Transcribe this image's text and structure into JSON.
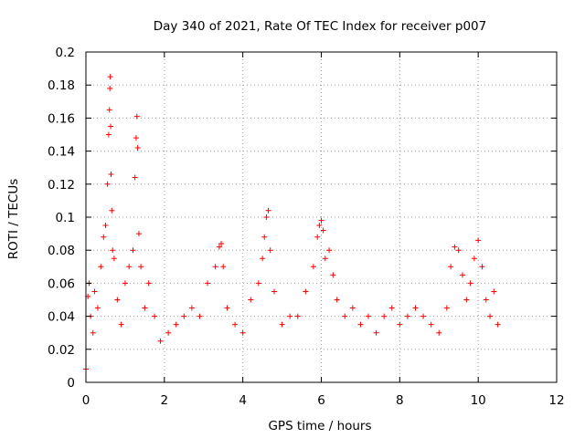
{
  "chart_data": {
    "type": "scatter",
    "title": "Day 340 of 2021, Rate Of TEC Index for receiver p007",
    "xlabel": "GPS time / hours",
    "ylabel": "ROTI / TECUs",
    "xlim": [
      0,
      12
    ],
    "ylim": [
      0,
      0.2
    ],
    "xticks": [
      0,
      2,
      4,
      6,
      8,
      10,
      12
    ],
    "xtick_labels": [
      "0",
      "2",
      "4",
      "6",
      "8",
      "10",
      "12"
    ],
    "yticks": [
      0,
      0.02,
      0.04,
      0.06,
      0.08,
      0.1,
      0.12,
      0.14,
      0.16,
      0.18,
      0.2
    ],
    "ytick_labels": [
      "0",
      "0.02",
      "0.04",
      "0.06",
      "0.08",
      "0.1",
      "0.12",
      "0.14",
      "0.16",
      "0.18",
      "0.2"
    ],
    "grid": true,
    "marker": "+",
    "color": "#ff0000",
    "series": [
      {
        "name": "p007",
        "x": [
          0.0,
          0.05,
          0.08,
          0.12,
          0.18,
          0.22,
          0.3,
          0.38,
          0.45,
          0.5,
          0.55,
          0.58,
          0.6,
          0.61,
          0.62,
          0.63,
          0.64,
          0.66,
          0.68,
          0.72,
          0.8,
          0.9,
          1.0,
          1.1,
          1.2,
          1.25,
          1.28,
          1.3,
          1.32,
          1.35,
          1.4,
          1.5,
          1.6,
          1.75,
          1.9,
          2.1,
          2.3,
          2.5,
          2.7,
          2.9,
          3.1,
          3.3,
          3.4,
          3.45,
          3.5,
          3.6,
          3.8,
          4.0,
          4.2,
          4.4,
          4.5,
          4.55,
          4.6,
          4.65,
          4.7,
          4.8,
          5.0,
          5.2,
          5.4,
          5.6,
          5.8,
          5.9,
          5.95,
          6.0,
          6.05,
          6.1,
          6.2,
          6.3,
          6.4,
          6.6,
          6.8,
          7.0,
          7.2,
          7.4,
          7.6,
          7.8,
          8.0,
          8.2,
          8.4,
          8.6,
          8.8,
          9.0,
          9.2,
          9.3,
          9.4,
          9.5,
          9.6,
          9.7,
          9.8,
          9.9,
          10.0,
          10.1,
          10.2,
          10.3,
          10.4,
          10.5
        ],
        "y": [
          0.008,
          0.052,
          0.06,
          0.04,
          0.03,
          0.055,
          0.045,
          0.07,
          0.088,
          0.095,
          0.12,
          0.15,
          0.165,
          0.178,
          0.185,
          0.155,
          0.126,
          0.104,
          0.08,
          0.075,
          0.05,
          0.035,
          0.06,
          0.07,
          0.08,
          0.124,
          0.148,
          0.161,
          0.142,
          0.09,
          0.07,
          0.045,
          0.06,
          0.04,
          0.025,
          0.03,
          0.035,
          0.04,
          0.045,
          0.04,
          0.06,
          0.07,
          0.082,
          0.084,
          0.07,
          0.045,
          0.035,
          0.03,
          0.05,
          0.06,
          0.075,
          0.088,
          0.1,
          0.104,
          0.08,
          0.055,
          0.035,
          0.04,
          0.04,
          0.055,
          0.07,
          0.088,
          0.095,
          0.098,
          0.092,
          0.075,
          0.08,
          0.065,
          0.05,
          0.04,
          0.045,
          0.035,
          0.04,
          0.03,
          0.04,
          0.045,
          0.035,
          0.04,
          0.045,
          0.04,
          0.035,
          0.03,
          0.045,
          0.07,
          0.082,
          0.08,
          0.065,
          0.05,
          0.06,
          0.075,
          0.086,
          0.07,
          0.05,
          0.04,
          0.055,
          0.035
        ]
      }
    ]
  }
}
